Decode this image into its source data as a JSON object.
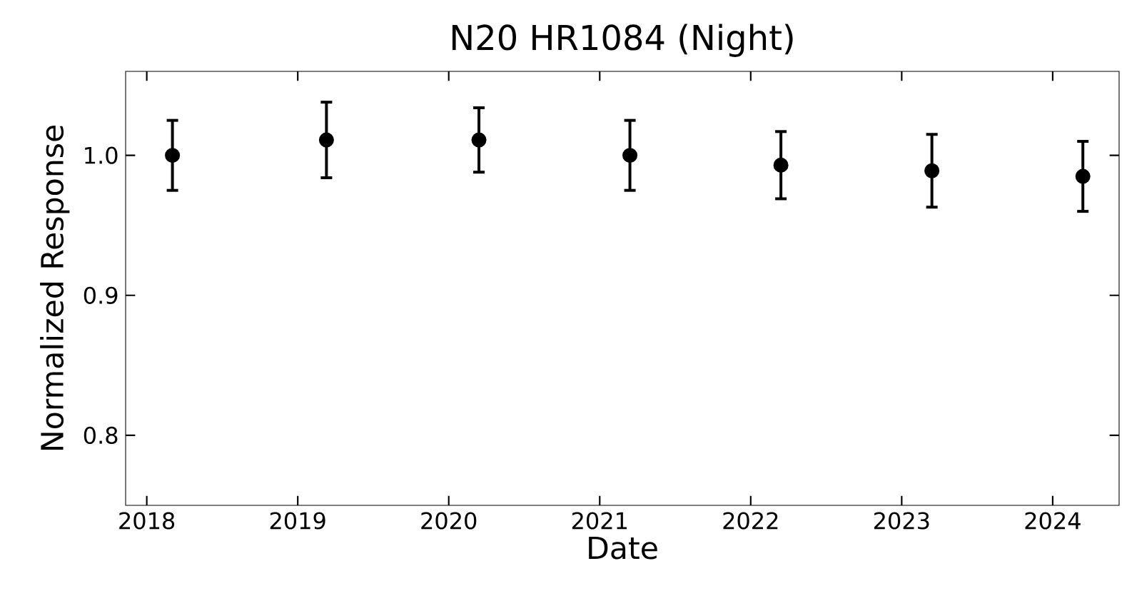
{
  "chart_data": {
    "type": "scatter",
    "title": "N20 HR1084 (Night)",
    "xlabel": "Date",
    "ylabel": "Normalized Response",
    "x": [
      2018.17,
      2019.19,
      2020.2,
      2021.2,
      2022.2,
      2023.2,
      2024.2
    ],
    "values": [
      1.0,
      1.011,
      1.011,
      1.0,
      0.993,
      0.989,
      0.985
    ],
    "errors": [
      0.025,
      0.027,
      0.023,
      0.025,
      0.024,
      0.026,
      0.025
    ],
    "color": "#000000",
    "marker": "circle",
    "xlim": [
      2017.86,
      2024.44
    ],
    "ylim": [
      0.75,
      1.06
    ],
    "xticks": [
      2018,
      2019,
      2020,
      2021,
      2022,
      2023,
      2024
    ],
    "yticks": [
      {
        "value": 0.8,
        "label": "0.8"
      },
      {
        "value": 0.9,
        "label": "0.9"
      },
      {
        "value": 1.0,
        "label": "1.0"
      }
    ],
    "grid": false
  }
}
